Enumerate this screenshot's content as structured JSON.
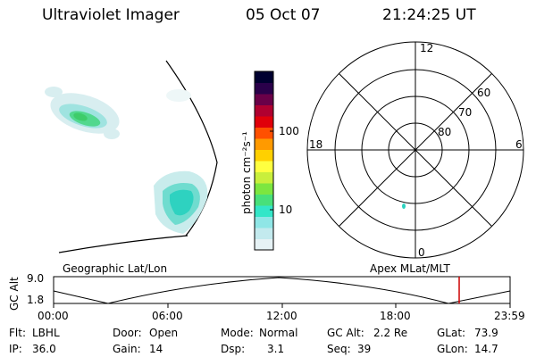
{
  "header": {
    "instrument": "Ultraviolet Imager",
    "date": "05 Oct 07",
    "time": "21:24:25 UT"
  },
  "colorbar": {
    "label": "photon cm⁻²s⁻¹",
    "ticks": [
      {
        "label": "100",
        "value": 100
      },
      {
        "label": "10",
        "value": 10
      }
    ],
    "scale": "log",
    "colors": [
      "#e6f2f5",
      "#c3eaee",
      "#8fe6e6",
      "#33e6c8",
      "#48e07a",
      "#7ce640",
      "#c9ef3c",
      "#ffff40",
      "#ffd000",
      "#ff9a00",
      "#ff5000",
      "#e0000a",
      "#b00030",
      "#6a0048",
      "#2a004a",
      "#000030"
    ]
  },
  "geographic_panel": {
    "label": "Geographic Lat/Lon"
  },
  "polar_panel": {
    "label": "Apex MLat/MLT",
    "mlt_labels": [
      "12",
      "18",
      "6",
      "0"
    ],
    "mlat_labels": [
      "60",
      "70",
      "80"
    ]
  },
  "altitude_plot": {
    "ylabel": "GC Alt",
    "yticks": [
      "9.0",
      "1.8"
    ],
    "xticks": [
      "00:00",
      "06:00",
      "12:00",
      "18:00",
      "23:59"
    ],
    "marker_time": "21:24",
    "marker_color": "#cc0000"
  },
  "footer": {
    "row1": [
      {
        "key": "Flt:",
        "value": "LBHL"
      },
      {
        "key": "Door:",
        "value": "Open"
      },
      {
        "key": "Mode:",
        "value": "Normal"
      },
      {
        "key": "GC Alt:",
        "value": "2.2 Re"
      },
      {
        "key": "GLat:",
        "value": "73.9"
      }
    ],
    "row2": [
      {
        "key": "IP:",
        "value": "36.0"
      },
      {
        "key": "Gain:",
        "value": "14"
      },
      {
        "key": "Dsp:",
        "value": "3.1"
      },
      {
        "key": "Seq:",
        "value": "39"
      },
      {
        "key": "GLon:",
        "value": "14.7"
      }
    ]
  }
}
